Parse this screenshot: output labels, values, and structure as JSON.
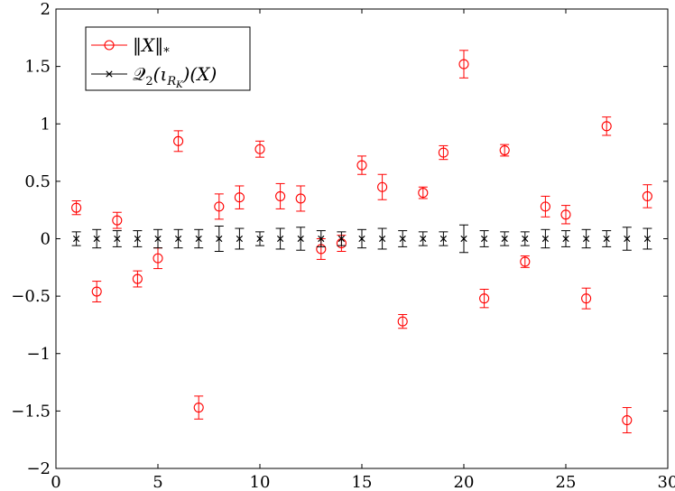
{
  "chart_data": {
    "type": "scatter",
    "title": "",
    "xlabel": "",
    "ylabel": "",
    "xlim": [
      0,
      30
    ],
    "ylim": [
      -2,
      2
    ],
    "x_ticks": [
      0,
      5,
      10,
      15,
      20,
      25,
      30
    ],
    "y_ticks": [
      -2,
      -1.5,
      -1,
      -0.5,
      0,
      0.5,
      1,
      1.5,
      2
    ],
    "x_tick_labels": [
      "0",
      "5",
      "10",
      "15",
      "20",
      "25",
      "30"
    ],
    "y_tick_labels": [
      "−2",
      "−1.5",
      "−1",
      "−0.5",
      "0",
      "0.5",
      "1",
      "1.5",
      "2"
    ],
    "grid": false,
    "legend_position": "top-left",
    "series": [
      {
        "name": "‖X‖*",
        "color": "#ff0000",
        "marker": "circle",
        "x": [
          1,
          2,
          3,
          4,
          5,
          6,
          7,
          8,
          9,
          10,
          11,
          12,
          13,
          14,
          15,
          16,
          17,
          18,
          19,
          20,
          21,
          22,
          23,
          24,
          25,
          26,
          27,
          28,
          29
        ],
        "y": [
          0.27,
          -0.46,
          0.16,
          -0.35,
          -0.17,
          0.85,
          -1.47,
          0.28,
          0.36,
          0.78,
          0.37,
          0.35,
          -0.09,
          -0.04,
          0.64,
          0.45,
          -0.72,
          0.4,
          0.75,
          1.52,
          -0.52,
          0.77,
          -0.2,
          0.28,
          0.21,
          -0.52,
          0.98,
          -1.58,
          0.37
        ],
        "err": [
          0.06,
          0.09,
          0.07,
          0.07,
          0.09,
          0.09,
          0.1,
          0.11,
          0.1,
          0.07,
          0.11,
          0.11,
          0.09,
          0.07,
          0.08,
          0.11,
          0.06,
          0.05,
          0.06,
          0.12,
          0.08,
          0.05,
          0.05,
          0.09,
          0.08,
          0.09,
          0.08,
          0.11,
          0.1
        ]
      },
      {
        "name": "Q2(ιRK)(X)",
        "color": "#000000",
        "marker": "x",
        "x": [
          1,
          2,
          3,
          4,
          5,
          6,
          7,
          8,
          9,
          10,
          11,
          12,
          13,
          14,
          15,
          16,
          17,
          18,
          19,
          20,
          21,
          22,
          23,
          24,
          25,
          26,
          27,
          28,
          29
        ],
        "y": [
          0,
          0,
          0,
          0,
          0,
          0,
          0,
          0,
          0,
          0,
          0,
          0,
          0,
          0,
          0,
          0,
          0,
          0,
          0,
          0,
          0,
          0,
          0,
          0,
          0,
          0,
          0,
          0,
          0
        ],
        "err": [
          0.06,
          0.08,
          0.07,
          0.07,
          0.08,
          0.08,
          0.08,
          0.11,
          0.09,
          0.06,
          0.09,
          0.1,
          0.07,
          0.06,
          0.08,
          0.09,
          0.07,
          0.06,
          0.06,
          0.12,
          0.07,
          0.06,
          0.06,
          0.08,
          0.07,
          0.08,
          0.07,
          0.1,
          0.09
        ]
      }
    ]
  }
}
